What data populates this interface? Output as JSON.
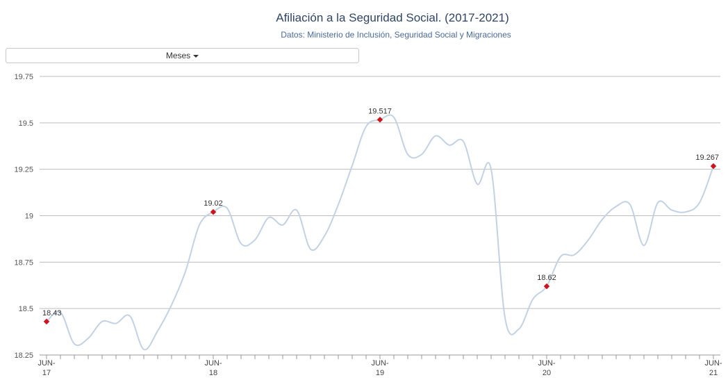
{
  "header": {
    "title": "Afiliación a la Seguridad Social. (2017-2021)",
    "subtitle": "Datos: Ministerio de Inclusión, Seguridad Social y Migraciones"
  },
  "controls": {
    "period_dropdown_label": "Meses"
  },
  "colors": {
    "line": "#c2d2e4",
    "marker": "#d0121b",
    "grid": "#bdbdbd"
  },
  "chart_data": {
    "type": "line",
    "title": "Afiliación a la Seguridad Social. (2017-2021)",
    "subtitle": "Datos: Ministerio de Inclusión, Seguridad Social y Migraciones",
    "xlabel": "",
    "ylabel": "",
    "ylim": [
      18.25,
      19.75
    ],
    "yticks": [
      18.25,
      18.5,
      18.75,
      19,
      19.25,
      19.5,
      19.75
    ],
    "ytick_labels": [
      "18.25",
      "18.5",
      "18.75",
      "19",
      "19.25",
      "19.5",
      "19.75"
    ],
    "grid": true,
    "x": [
      "2017-06",
      "2017-07",
      "2017-08",
      "2017-09",
      "2017-10",
      "2017-11",
      "2017-12",
      "2018-01",
      "2018-02",
      "2018-03",
      "2018-04",
      "2018-05",
      "2018-06",
      "2018-07",
      "2018-08",
      "2018-09",
      "2018-10",
      "2018-11",
      "2018-12",
      "2019-01",
      "2019-02",
      "2019-03",
      "2019-04",
      "2019-05",
      "2019-06",
      "2019-07",
      "2019-08",
      "2019-09",
      "2019-10",
      "2019-11",
      "2019-12",
      "2020-01",
      "2020-02",
      "2020-03",
      "2020-04",
      "2020-05",
      "2020-06",
      "2020-07",
      "2020-08",
      "2020-09",
      "2020-10",
      "2020-11",
      "2020-12",
      "2021-01",
      "2021-02",
      "2021-03",
      "2021-04",
      "2021-05",
      "2021-06"
    ],
    "xticks": [
      {
        "x": "2017-06",
        "line1": "JUN-",
        "line2": "17"
      },
      {
        "x": "2018-06",
        "line1": "JUN-",
        "line2": "18"
      },
      {
        "x": "2019-06",
        "line1": "JUN-",
        "line2": "19"
      },
      {
        "x": "2020-06",
        "line1": "JUN-",
        "line2": "20"
      },
      {
        "x": "2021-06",
        "line1": "JUN-",
        "line2": "21"
      }
    ],
    "series": [
      {
        "values": [
          18.43,
          18.48,
          18.31,
          18.34,
          18.43,
          18.42,
          18.46,
          18.28,
          18.38,
          18.52,
          18.7,
          18.95,
          19.02,
          19.04,
          18.85,
          18.87,
          18.99,
          18.95,
          19.03,
          18.82,
          18.89,
          19.06,
          19.27,
          19.48,
          19.517,
          19.53,
          19.33,
          19.33,
          19.43,
          19.38,
          19.4,
          19.17,
          19.25,
          18.45,
          18.39,
          18.55,
          18.62,
          18.78,
          18.79,
          18.87,
          18.98,
          19.05,
          19.06,
          18.84,
          19.07,
          19.03,
          19.02,
          19.07,
          19.267
        ]
      }
    ],
    "data_labels": [
      {
        "index": 0,
        "text": "18.43"
      },
      {
        "index": 12,
        "text": "19.02"
      },
      {
        "index": 24,
        "text": "19.517"
      },
      {
        "index": 36,
        "text": "18.62"
      },
      {
        "index": 48,
        "text": "19.267"
      }
    ]
  }
}
